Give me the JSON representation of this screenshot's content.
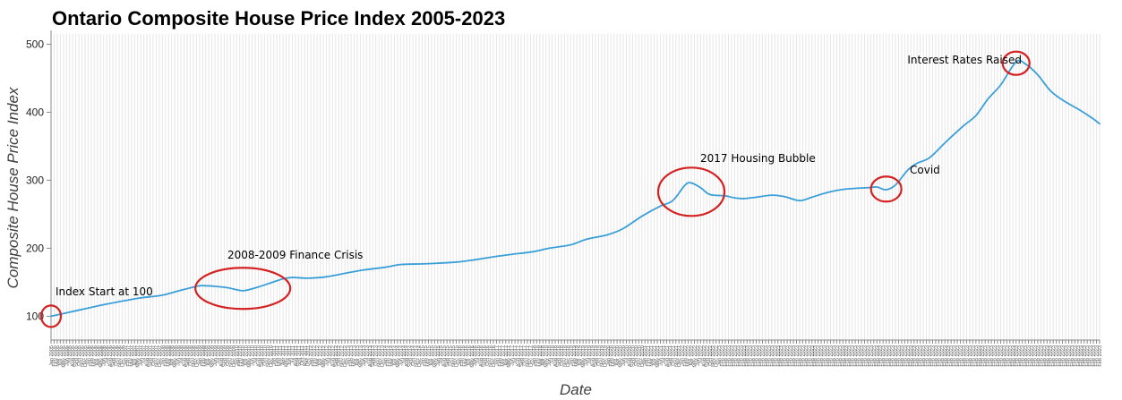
{
  "chart_data": {
    "type": "line",
    "title": "Ontario Composite House Price Index 2005-2023",
    "xlabel": "Date",
    "ylabel": "Composite House Price Index",
    "ylim": [
      65,
      515
    ],
    "yticks": [
      100,
      200,
      300,
      400,
      500
    ],
    "grid": "vertical",
    "x_start": "Jan 2005",
    "x_end": "Feb 2023",
    "series": [
      {
        "color": "#3a9fd9",
        "points": [
          [
            "2005-01",
            100
          ],
          [
            "2005-06",
            105
          ],
          [
            "2006-01",
            112
          ],
          [
            "2006-06",
            117
          ],
          [
            "2007-01",
            123
          ],
          [
            "2007-06",
            127
          ],
          [
            "2008-01",
            131
          ],
          [
            "2008-06",
            137
          ],
          [
            "2008-12",
            144
          ],
          [
            "2009-02",
            145
          ],
          [
            "2009-06",
            144
          ],
          [
            "2009-10",
            142
          ],
          [
            "2010-02",
            138
          ],
          [
            "2010-04",
            138
          ],
          [
            "2010-08",
            143
          ],
          [
            "2010-12",
            149
          ],
          [
            "2011-04",
            155
          ],
          [
            "2011-07",
            157
          ],
          [
            "2011-12",
            156
          ],
          [
            "2012-06",
            158
          ],
          [
            "2013-01",
            164
          ],
          [
            "2013-06",
            168
          ],
          [
            "2014-01",
            172
          ],
          [
            "2014-06",
            176
          ],
          [
            "2015-01",
            177
          ],
          [
            "2015-06",
            178
          ],
          [
            "2016-01",
            180
          ],
          [
            "2016-06",
            183
          ],
          [
            "2017-01",
            188
          ],
          [
            "2017-06",
            191
          ],
          [
            "2018-01",
            195
          ],
          [
            "2018-06",
            200
          ],
          [
            "2019-01",
            205
          ],
          [
            "2019-06",
            213
          ],
          [
            "2020-01",
            220
          ],
          [
            "2020-06",
            229
          ],
          [
            "2020-12",
            247
          ],
          [
            "2021-06",
            262
          ],
          [
            "2021-10",
            270
          ],
          [
            "2022-02",
            293
          ],
          [
            "2022-04",
            296
          ],
          [
            "2022-07",
            289
          ],
          [
            "2022-10",
            279
          ],
          [
            "2023-03",
            277
          ],
          [
            "2023-06",
            274
          ],
          [
            "2023-09",
            273
          ],
          [
            "2024-01",
            275
          ],
          [
            "2024-06",
            278
          ],
          [
            "2024-10",
            276
          ],
          [
            "2025-03",
            270
          ],
          [
            "2025-07",
            275
          ],
          [
            "2025-12",
            282
          ],
          [
            "2026-06",
            287
          ],
          [
            "2027-01",
            289
          ],
          [
            "2027-04",
            290
          ],
          [
            "2027-07",
            286
          ],
          [
            "2027-10",
            293
          ],
          [
            "2028-02",
            315
          ],
          [
            "2028-05",
            325
          ],
          [
            "2028-09",
            333
          ],
          [
            "2029-02",
            355
          ],
          [
            "2029-08",
            380
          ],
          [
            "2029-12",
            395
          ],
          [
            "2030-04",
            420
          ],
          [
            "2030-08",
            440
          ],
          [
            "2031-01",
            474
          ],
          [
            "2031-04",
            471
          ],
          [
            "2031-08",
            455
          ],
          [
            "2031-12",
            432
          ],
          [
            "2032-04",
            418
          ],
          [
            "2032-10",
            402
          ],
          [
            "2033-02",
            390
          ],
          [
            "2033-04",
            383
          ]
        ]
      }
    ],
    "annotations": [
      {
        "label": "Index Start at 100",
        "target": [
          "2005-01",
          100
        ]
      },
      {
        "label": "2008-2009 Finance Crisis",
        "target": [
          "2010-03",
          141
        ]
      },
      {
        "label": "2017 Housing Bubble",
        "target": [
          "2022-04",
          283
        ]
      },
      {
        "label": "Covid",
        "target": [
          "2027-07",
          287
        ]
      },
      {
        "label": "Interest Rates Raised",
        "target": [
          "2031-01",
          472
        ]
      }
    ]
  },
  "annotation_style": {
    "ring_color": "#d42222",
    "line_color": "#3a9fd9"
  },
  "x_tick_labels_text": "Jan 2005 ... Feb 2023 (monthly)"
}
